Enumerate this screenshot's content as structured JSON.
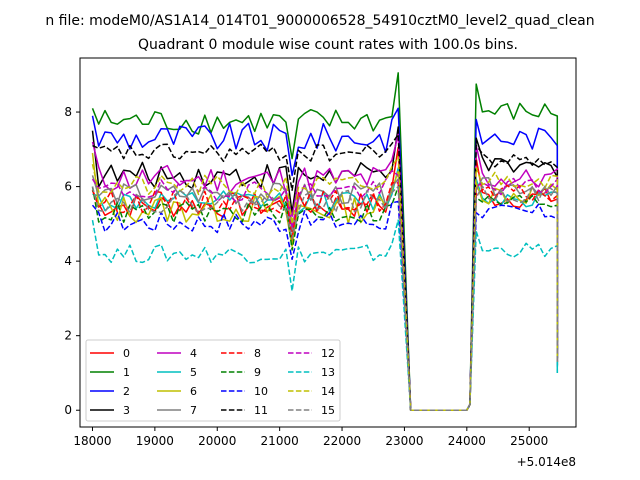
{
  "chart_data": {
    "type": "line",
    "suptitle": "n file: modeM0/AS1A14_014T01_9000006528_54910cztM0_level2_quad_clean",
    "title": "Quadrant 0 module wise count rates with 100.0s bins.",
    "xlabel": "",
    "ylabel": "",
    "x_offset_label": "+5.014e8",
    "xlim": [
      17800,
      25750
    ],
    "ylim": [
      -0.45,
      9.45
    ],
    "x_ticks": [
      18000,
      19000,
      20000,
      21000,
      22000,
      23000,
      24000,
      25000
    ],
    "x_tick_labels": [
      "18000",
      "19000",
      "20000",
      "21000",
      "22000",
      "23000",
      "24000",
      "25000"
    ],
    "y_ticks": [
      0,
      2,
      4,
      6,
      8
    ],
    "y_tick_labels": [
      "0",
      "2",
      "4",
      "6",
      "8"
    ],
    "grid": false,
    "legend": {
      "location": "lower-left",
      "columns": 4
    },
    "time_bins": {
      "segment1": {
        "start": 18000,
        "step": 100,
        "count": 50
      },
      "gap": {
        "x": [
          23100,
          23200,
          23300,
          23400,
          23500,
          23600,
          23700,
          23800,
          23900,
          24000
        ],
        "value": 0.0,
        "ramp_x": 24050,
        "ramp_value": 0.15
      },
      "segment2": {
        "start": 24150,
        "step": 100,
        "count": 14
      },
      "end": {
        "x": 25450
      }
    },
    "series": [
      {
        "name": "0",
        "color": "#ff0000",
        "style": "solid",
        "mean": 5.5,
        "amp": 0.35,
        "start": 5.9,
        "peak": 7.05,
        "seg2_mean": 5.7,
        "end": 1.3
      },
      {
        "name": "1",
        "color": "#008000",
        "style": "solid",
        "mean": 7.75,
        "amp": 0.35,
        "start": 8.1,
        "peak": 9.05,
        "seg2_mean": 8.0,
        "end": 1.4
      },
      {
        "name": "2",
        "color": "#0000ff",
        "style": "solid",
        "mean": 7.3,
        "amp": 0.4,
        "start": 7.9,
        "peak": 8.1,
        "seg2_mean": 7.3,
        "end": 1.3
      },
      {
        "name": "3",
        "color": "#000000",
        "style": "solid",
        "mean": 6.3,
        "amp": 0.35,
        "start": 7.5,
        "peak": 7.6,
        "seg2_mean": 6.5,
        "end": 1.5
      },
      {
        "name": "4",
        "color": "#bf00bf",
        "style": "solid",
        "mean": 6.2,
        "amp": 0.4,
        "start": 7.2,
        "peak": 7.4,
        "seg2_mean": 6.2,
        "end": 1.3
      },
      {
        "name": "5",
        "color": "#00bfbf",
        "style": "solid",
        "mean": 5.6,
        "amp": 0.3,
        "start": 5.8,
        "peak": 6.5,
        "seg2_mean": 5.7,
        "end": 1.0
      },
      {
        "name": "6",
        "color": "#bfbf00",
        "style": "solid",
        "mean": 5.4,
        "amp": 0.4,
        "start": 6.9,
        "peak": 6.4,
        "seg2_mean": 5.8,
        "end": 1.2
      },
      {
        "name": "7",
        "color": "#808080",
        "style": "solid",
        "mean": 5.8,
        "amp": 0.3,
        "start": 6.3,
        "peak": 6.2,
        "seg2_mean": 6.0,
        "end": 1.4
      },
      {
        "name": "8",
        "color": "#ff0000",
        "style": "dashed",
        "mean": 5.6,
        "amp": 0.3,
        "start": 5.9,
        "peak": 6.1,
        "seg2_mean": 5.8,
        "end": 1.3
      },
      {
        "name": "9",
        "color": "#008000",
        "style": "dashed",
        "mean": 5.3,
        "amp": 0.3,
        "start": 6.0,
        "peak": 6.0,
        "seg2_mean": 5.6,
        "end": 1.2
      },
      {
        "name": "10",
        "color": "#0000ff",
        "style": "dashed",
        "mean": 5.05,
        "amp": 0.3,
        "start": 5.5,
        "peak": 5.6,
        "seg2_mean": 5.3,
        "end": 1.2
      },
      {
        "name": "11",
        "color": "#000000",
        "style": "dashed",
        "mean": 6.9,
        "amp": 0.25,
        "start": 7.1,
        "peak": 7.4,
        "seg2_mean": 6.7,
        "end": 1.6
      },
      {
        "name": "12",
        "color": "#bf00bf",
        "style": "dashed",
        "mean": 5.9,
        "amp": 0.3,
        "start": 6.2,
        "peak": 6.3,
        "seg2_mean": 6.0,
        "end": 1.4
      },
      {
        "name": "13",
        "color": "#00bfbf",
        "style": "dashed",
        "mean": 4.2,
        "amp": 0.25,
        "start": 5.1,
        "peak": 5.1,
        "seg2_mean": 4.3,
        "end": 1.0
      },
      {
        "name": "14",
        "color": "#bfbf00",
        "style": "dashed",
        "mean": 6.0,
        "amp": 0.3,
        "start": 6.6,
        "peak": 6.8,
        "seg2_mean": 6.2,
        "end": 1.3
      },
      {
        "name": "15",
        "color": "#808080",
        "style": "dashed",
        "mean": 5.6,
        "amp": 0.3,
        "start": 6.0,
        "peak": 6.0,
        "seg2_mean": 5.8,
        "end": 1.3
      }
    ]
  }
}
